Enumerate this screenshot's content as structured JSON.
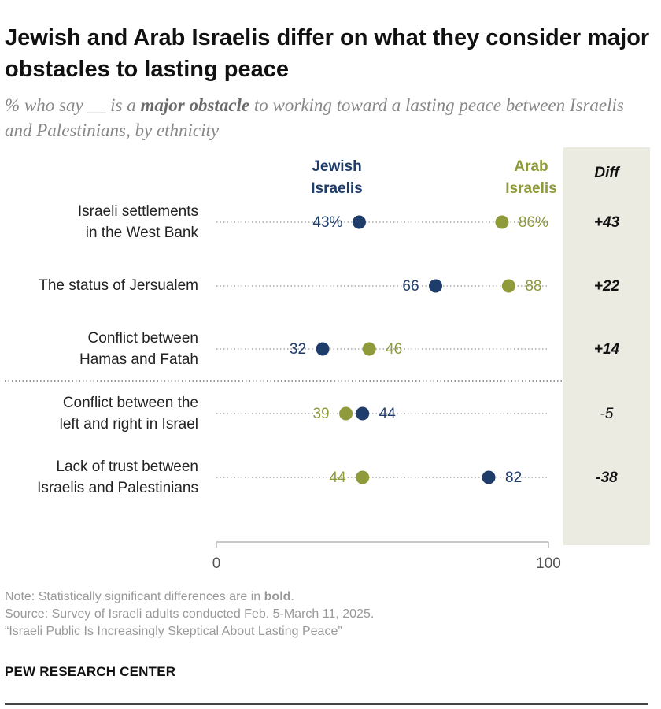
{
  "title": "Jewish and Arab Israelis differ on what they consider major obstacles to lasting peace",
  "subtitle": {
    "prefix": "% who say __ is a ",
    "emphasis": "major obstacle",
    "suffix": " to working toward a lasting peace between Israelis and Palestinians, by ethnicity"
  },
  "colors": {
    "jewish": "#1f3d6b",
    "arab": "#8f9a3a",
    "diff_bg": "#ecebe2",
    "dots": "#aaaaaa"
  },
  "chart_data": {
    "type": "dot",
    "series": [
      {
        "key": "jewish",
        "name": "Jewish Israelis",
        "name_lines": [
          "Jewish",
          "Israelis"
        ]
      },
      {
        "key": "arab",
        "name": "Arab Israelis",
        "name_lines": [
          "Arab",
          "Israelis"
        ]
      }
    ],
    "diff_header": "Diff",
    "xlim": [
      0,
      100
    ],
    "ticks": [
      0,
      100
    ],
    "rows": [
      {
        "label_lines": [
          "Israeli settlements",
          "in the West Bank"
        ],
        "jewish": 43,
        "arab": 86,
        "jewish_label": "43%",
        "arab_label": "86%",
        "diff": "+43",
        "significant": true
      },
      {
        "label_lines": [
          "The status of Jersualem"
        ],
        "jewish": 66,
        "arab": 88,
        "jewish_label": "66",
        "arab_label": "88",
        "diff": "+22",
        "significant": true
      },
      {
        "label_lines": [
          "Conflict between",
          "Hamas and Fatah"
        ],
        "jewish": 32,
        "arab": 46,
        "jewish_label": "32",
        "arab_label": "46",
        "diff": "+14",
        "significant": true
      },
      {
        "label_lines": [
          "Conflict between the",
          "left and right in Israel"
        ],
        "jewish": 44,
        "arab": 39,
        "jewish_label": "44",
        "arab_label": "39",
        "diff": "-5",
        "significant": false
      },
      {
        "label_lines": [
          "Lack of trust between",
          "Israelis and Palestinians"
        ],
        "jewish": 82,
        "arab": 44,
        "jewish_label": "82",
        "arab_label": "44",
        "diff": "-38",
        "significant": true
      }
    ]
  },
  "footer": {
    "note_prefix": "Note: Statistically significant differences are in ",
    "note_bold": "bold",
    "note_suffix": ".",
    "source": "Source: Survey of Israeli adults conducted Feb. 5-March 11, 2025.",
    "report": "“Israeli Public Is Increasingly Skeptical About Lasting Peace”"
  },
  "brand": "PEW RESEARCH CENTER"
}
